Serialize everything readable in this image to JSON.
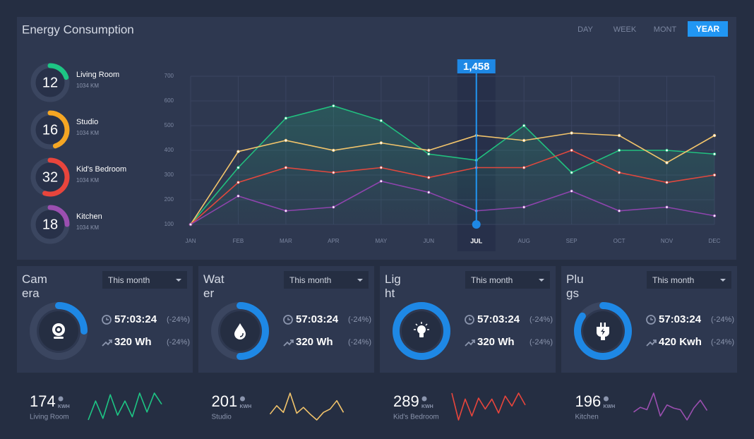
{
  "header": {
    "title": "Energy Consumption",
    "tabs": [
      "DAY",
      "WEEK",
      "MONT",
      "YEAR"
    ]
  },
  "rooms": [
    {
      "value": 12,
      "label": "Living Room",
      "sub": "1034 KM",
      "color": "#1dc584",
      "progress": 20
    },
    {
      "value": 16,
      "label": "Studio",
      "sub": "1034 KM",
      "color": "#f5a623",
      "progress": 45
    },
    {
      "value": 32,
      "label": "Kid's Bedroom",
      "sub": "1034 KM",
      "color": "#e8453c",
      "progress": 55
    },
    {
      "value": 18,
      "label": "Kitchen",
      "sub": "1034 KM",
      "color": "#9b4fb0",
      "progress": 25
    }
  ],
  "chart_data": {
    "type": "line",
    "categories": [
      "JAN",
      "FEB",
      "MAR",
      "APR",
      "MAY",
      "JUN",
      "JUL",
      "AUG",
      "SEP",
      "OCT",
      "NOV",
      "DEC"
    ],
    "series": [
      {
        "color": "#21c07f",
        "values": [
          100,
          330,
          530,
          580,
          520,
          385,
          360,
          500,
          310,
          400,
          400,
          385
        ]
      },
      {
        "color": "#f2c46b",
        "values": [
          100,
          395,
          440,
          400,
          430,
          400,
          460,
          440,
          470,
          460,
          350,
          460
        ]
      },
      {
        "color": "#e0483e",
        "values": [
          100,
          270,
          330,
          310,
          330,
          290,
          330,
          330,
          400,
          310,
          270,
          300
        ]
      },
      {
        "color": "#8e44ad",
        "values": [
          100,
          215,
          155,
          170,
          275,
          230,
          155,
          170,
          235,
          155,
          170,
          135
        ]
      }
    ],
    "ylim": [
      100,
      700
    ],
    "yticks": [
      100,
      200,
      300,
      400,
      500,
      600,
      700
    ],
    "grid": true,
    "highlight": {
      "category": "JUL",
      "label": "1,458"
    }
  },
  "devices": [
    {
      "title": "Camera",
      "period": "This month",
      "time": "57:03:24",
      "time_change": "(-24%)",
      "energy": "320 Wh",
      "energy_change": "(-24%)",
      "progress": 25
    },
    {
      "title": "Water",
      "period": "This month",
      "time": "57:03:24",
      "time_change": "(-24%)",
      "energy": "320 Wh",
      "energy_change": "(-24%)",
      "progress": 50
    },
    {
      "title": "Light",
      "period": "This month",
      "time": "57:03:24",
      "time_change": "(-24%)",
      "energy": "320 Wh",
      "energy_change": "(-24%)",
      "progress": 100
    },
    {
      "title": "Plugs",
      "period": "This month",
      "time": "57:03:24",
      "time_change": "(-24%)",
      "energy": "420 Kwh",
      "energy_change": "(-24%)",
      "progress": 85
    }
  ],
  "stats": [
    {
      "value": 174,
      "unit": "KWH",
      "label": "Living Room",
      "color": "#1dc584",
      "spark": [
        15,
        27,
        16,
        31,
        18,
        27,
        17,
        32,
        20,
        32,
        25
      ]
    },
    {
      "value": 201,
      "unit": "KWH",
      "label": "Studio",
      "color": "#f2c46b",
      "spark": [
        17,
        27,
        19,
        42,
        18,
        25,
        17,
        10,
        19,
        23,
        33,
        19
      ]
    },
    {
      "value": 289,
      "unit": "KWH",
      "label": "Kid's Bedroom",
      "color": "#e8453c",
      "spark": [
        33,
        6,
        27,
        10,
        28,
        17,
        27,
        13,
        30,
        20,
        33,
        21
      ]
    },
    {
      "value": 196,
      "unit": "KWH",
      "label": "Kitchen",
      "color": "#9b4fb0",
      "spark": [
        17,
        23,
        20,
        41,
        12,
        26,
        22,
        20,
        7,
        22,
        32,
        19
      ]
    }
  ]
}
